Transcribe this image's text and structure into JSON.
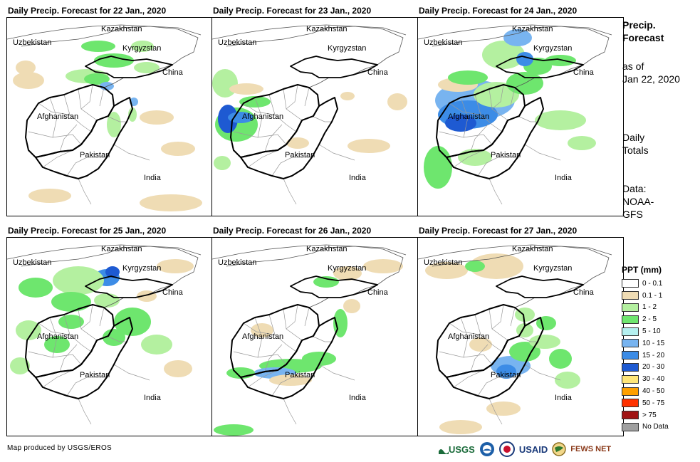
{
  "panels": [
    {
      "title": "Daily Precip. Forecast for 22 Jan., 2020"
    },
    {
      "title": "Daily Precip. Forecast for 23 Jan., 2020"
    },
    {
      "title": "Daily Precip. Forecast for 24 Jan., 2020"
    },
    {
      "title": "Daily Precip. Forecast for 25 Jan., 2020"
    },
    {
      "title": "Daily Precip. Forecast for 26 Jan., 2020"
    },
    {
      "title": "Daily Precip. Forecast for 27 Jan., 2020"
    }
  ],
  "map_labels": {
    "kazakhstan": "Kazakhstan",
    "uzbekistan": "Uzbekistan",
    "kyrgyzstan": "Kyrgyzstan",
    "china": "China",
    "afghanistan": "Afghanistan",
    "pakistan": "Pakistan",
    "india": "India"
  },
  "side_info": {
    "title_line1": "Precip.",
    "title_line2": "Forecast",
    "asof_line1": "as of",
    "asof_line2": "Jan 22, 2020",
    "totals_line1": "Daily",
    "totals_line2": "Totals",
    "data_line1": "Data:",
    "data_line2": "NOAA-",
    "data_line3": "GFS"
  },
  "legend": {
    "title": "PPT (mm)",
    "items": [
      {
        "label": "0 - 0.1",
        "color": "#ffffff"
      },
      {
        "label": "0.1 - 1",
        "color": "#efdcb4"
      },
      {
        "label": "1 - 2",
        "color": "#b4f0a0"
      },
      {
        "label": "2 - 5",
        "color": "#6ee66e"
      },
      {
        "label": "5 - 10",
        "color": "#b4f0f0"
      },
      {
        "label": "10 - 15",
        "color": "#78b4f0"
      },
      {
        "label": "15 - 20",
        "color": "#3c8ce6"
      },
      {
        "label": "20 - 30",
        "color": "#1e5ad2"
      },
      {
        "label": "30 - 40",
        "color": "#ffe678"
      },
      {
        "label": "40 - 50",
        "color": "#ffa000"
      },
      {
        "label": "50 - 75",
        "color": "#ff3200"
      },
      {
        "label": "> 75",
        "color": "#a01414"
      },
      {
        "label": "No Data",
        "color": "#a0a0a0"
      }
    ]
  },
  "credit": "Map produced by USGS/EROS",
  "logos": {
    "usgs": "USGS",
    "usaid": "USAID",
    "fewsnet": "FEWS NET"
  }
}
